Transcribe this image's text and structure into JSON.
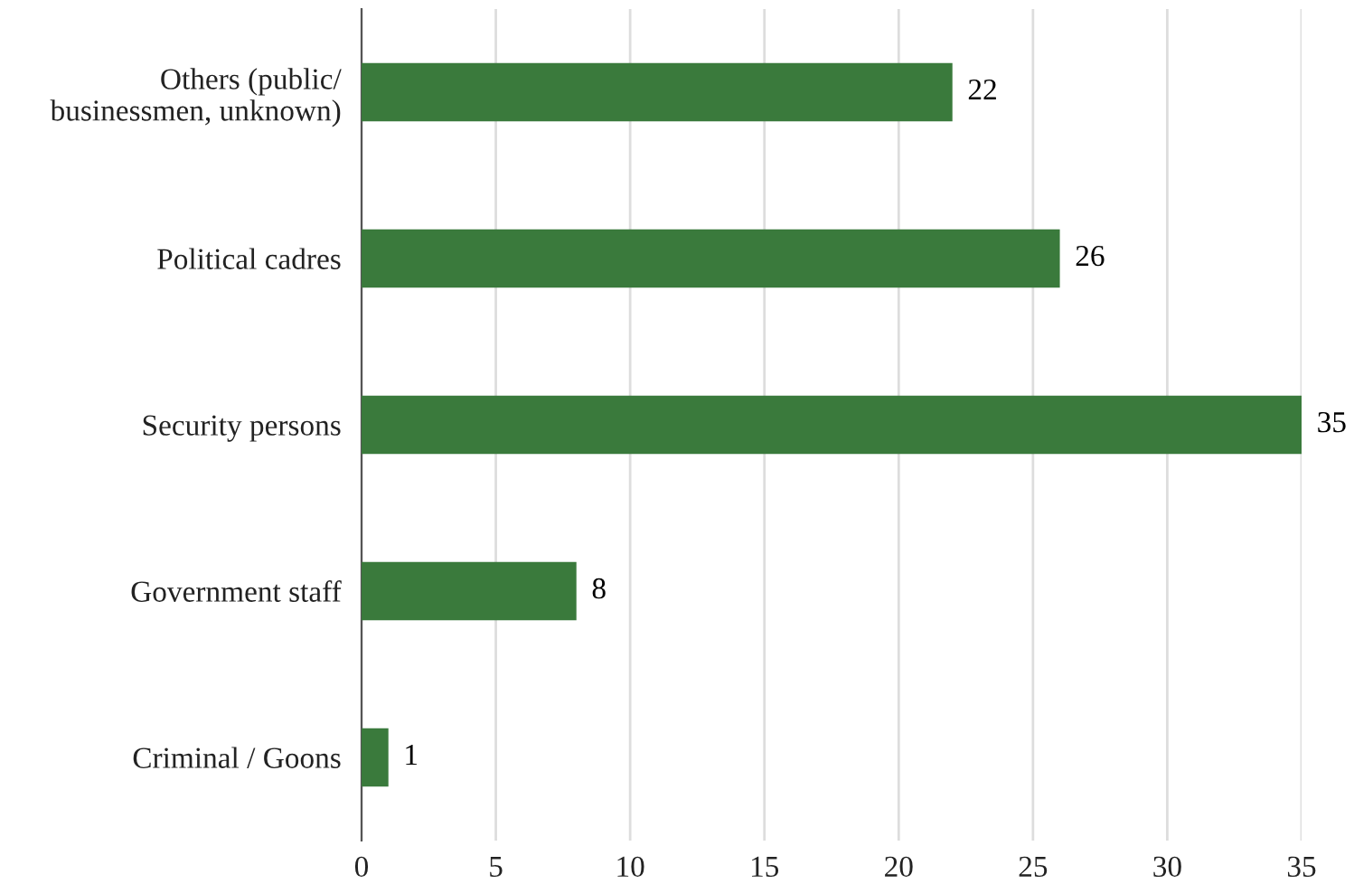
{
  "chart_data": {
    "type": "bar",
    "orientation": "horizontal",
    "categories": [
      "Others (public/\nbusinessmen, unknown)",
      "Political cadres",
      "Security persons",
      "Government staff",
      "Criminal / Goons"
    ],
    "values": [
      22,
      26,
      35,
      8,
      1
    ],
    "color": "#3a7a3c",
    "xlim": [
      0,
      35
    ],
    "xticks": [
      0,
      5,
      10,
      15,
      20,
      25,
      30,
      35
    ],
    "grid": "x",
    "data_labels": true
  }
}
